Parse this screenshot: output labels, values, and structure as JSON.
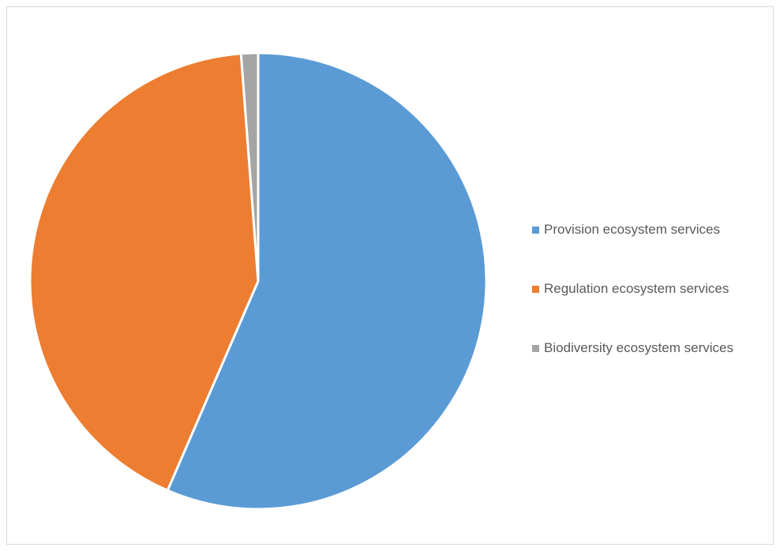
{
  "chart_data": {
    "type": "pie",
    "title": "",
    "categories": [
      "Provision ecosystem services",
      "Regulation ecosystem services",
      "Biodiversity ecosystem services"
    ],
    "values": [
      56.5,
      42.3,
      1.2
    ],
    "unit": "%",
    "colors": [
      "#5b9bd5",
      "#ed7d31",
      "#a5a5a5"
    ],
    "start_angle_deg": 0,
    "direction": "clockwise",
    "legend": {
      "position": "right",
      "entries": [
        {
          "label": "Provision ecosystem services",
          "color": "#5b9bd5"
        },
        {
          "label": "Regulation ecosystem services",
          "color": "#ed7d31"
        },
        {
          "label": "Biodiversity ecosystem services",
          "color": "#a5a5a5"
        }
      ]
    }
  }
}
